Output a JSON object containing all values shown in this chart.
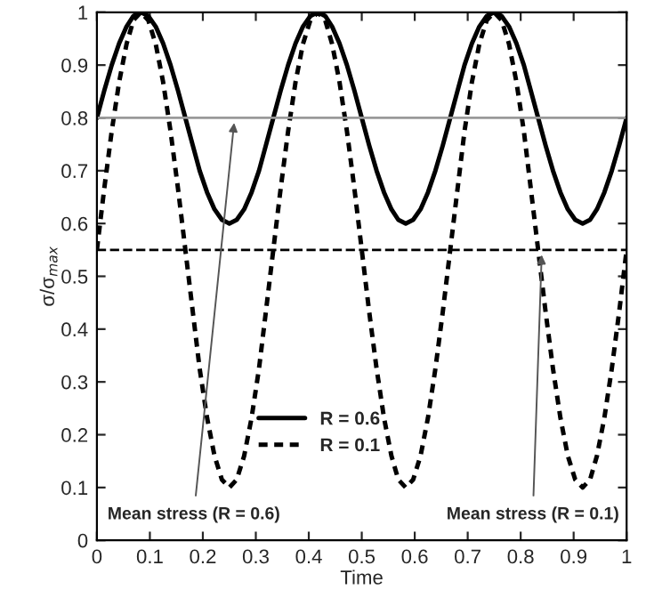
{
  "chart_data": {
    "type": "line",
    "xlabel": "Time",
    "ylabel": "σ/σ$_{max}$",
    "x": [
      0,
      0.014,
      0.028,
      0.042,
      0.056,
      0.069,
      0.083,
      0.097,
      0.111,
      0.125,
      0.139,
      0.153,
      0.167,
      0.181,
      0.194,
      0.208,
      0.222,
      0.236,
      0.25,
      0.264,
      0.278,
      0.292,
      0.306,
      0.319,
      0.333,
      0.347,
      0.361,
      0.375,
      0.389,
      0.403,
      0.417,
      0.431,
      0.444,
      0.458,
      0.472,
      0.486,
      0.5,
      0.514,
      0.528,
      0.542,
      0.556,
      0.569,
      0.583,
      0.597,
      0.611,
      0.625,
      0.639,
      0.653,
      0.667,
      0.681,
      0.694,
      0.708,
      0.722,
      0.736,
      0.75,
      0.764,
      0.778,
      0.792,
      0.806,
      0.819,
      0.833,
      0.847,
      0.861,
      0.875,
      0.889,
      0.903,
      0.917,
      0.931,
      0.944,
      0.958,
      0.972,
      0.986,
      1
    ],
    "series": [
      {
        "name": "R = 0.6",
        "color": "#000000",
        "line_style": "solid",
        "values": [
          0.8,
          0.852,
          0.9,
          0.941,
          0.973,
          0.993,
          1,
          0.993,
          0.973,
          0.941,
          0.9,
          0.852,
          0.8,
          0.748,
          0.7,
          0.659,
          0.627,
          0.607,
          0.6,
          0.607,
          0.627,
          0.659,
          0.7,
          0.748,
          0.8,
          0.852,
          0.9,
          0.941,
          0.973,
          0.993,
          1,
          0.993,
          0.973,
          0.941,
          0.9,
          0.852,
          0.8,
          0.748,
          0.7,
          0.659,
          0.627,
          0.607,
          0.6,
          0.607,
          0.627,
          0.659,
          0.7,
          0.748,
          0.8,
          0.852,
          0.9,
          0.941,
          0.973,
          0.993,
          1,
          0.993,
          0.973,
          0.941,
          0.9,
          0.852,
          0.8,
          0.748,
          0.7,
          0.659,
          0.627,
          0.607,
          0.6,
          0.607,
          0.627,
          0.659,
          0.7,
          0.748,
          0.8
        ]
      },
      {
        "name": "R = 0.1",
        "color": "#000000",
        "line_style": "dotted",
        "values": [
          0.55,
          0.667,
          0.775,
          0.868,
          0.94,
          0.985,
          1,
          0.985,
          0.94,
          0.868,
          0.775,
          0.667,
          0.55,
          0.433,
          0.325,
          0.232,
          0.16,
          0.115,
          0.1,
          0.115,
          0.16,
          0.232,
          0.325,
          0.433,
          0.55,
          0.667,
          0.775,
          0.868,
          0.94,
          0.985,
          1,
          0.985,
          0.94,
          0.868,
          0.775,
          0.667,
          0.55,
          0.433,
          0.325,
          0.232,
          0.16,
          0.115,
          0.1,
          0.115,
          0.16,
          0.232,
          0.325,
          0.433,
          0.55,
          0.667,
          0.775,
          0.868,
          0.94,
          0.985,
          1,
          0.985,
          0.94,
          0.868,
          0.775,
          0.667,
          0.55,
          0.433,
          0.325,
          0.232,
          0.16,
          0.115,
          0.1,
          0.115,
          0.16,
          0.232,
          0.325,
          0.433,
          0.55
        ]
      }
    ],
    "ref_lines": [
      {
        "axis": "y",
        "value": 0.8,
        "color": "#999999",
        "line_style": "solid"
      },
      {
        "axis": "y",
        "value": 0.55,
        "color": "#000000",
        "line_style": "dashed"
      }
    ],
    "annotations": [
      {
        "text": "Mean stress (R = 0.6)",
        "x": 0.26,
        "y": 0.8
      },
      {
        "text": "Mean stress (R = 0.1)",
        "x": 0.84,
        "y": 0.55
      }
    ],
    "xlim": [
      0,
      1
    ],
    "ylim": [
      0,
      1
    ],
    "xticks": [
      0,
      0.1,
      0.2,
      0.3,
      0.4,
      0.5,
      0.6,
      0.7,
      0.8,
      0.9,
      1
    ],
    "yticks": [
      0,
      0.1,
      0.2,
      0.3,
      0.4,
      0.5,
      0.6,
      0.7,
      0.8,
      0.9,
      1
    ],
    "legend": "bottom",
    "grid": false
  }
}
